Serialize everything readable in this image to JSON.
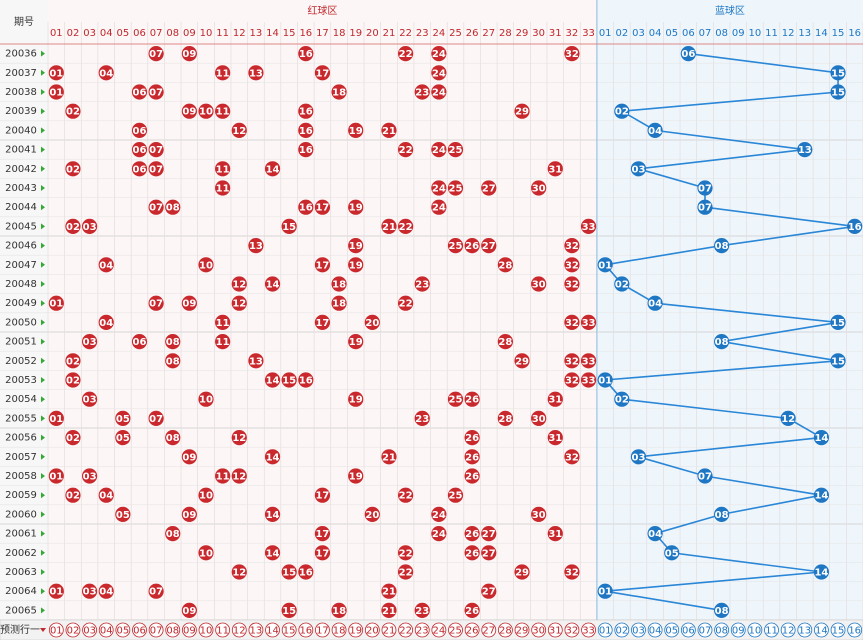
{
  "header": {
    "period": "期号",
    "red_zone": "红球区",
    "blue_zone": "蓝球区"
  },
  "red_columns": [
    "01",
    "02",
    "03",
    "04",
    "05",
    "06",
    "07",
    "08",
    "09",
    "10",
    "11",
    "12",
    "13",
    "14",
    "15",
    "16",
    "17",
    "18",
    "19",
    "20",
    "21",
    "22",
    "23",
    "24",
    "25",
    "26",
    "27",
    "28",
    "29",
    "30",
    "31",
    "32",
    "33"
  ],
  "blue_columns": [
    "01",
    "02",
    "03",
    "04",
    "05",
    "06",
    "07",
    "08",
    "09",
    "10",
    "11",
    "12",
    "13",
    "14",
    "15",
    "16"
  ],
  "rows": [
    {
      "period": "20036",
      "red": [
        "07",
        "09",
        "16",
        "22",
        "24",
        "32"
      ],
      "blue": "06"
    },
    {
      "period": "20037",
      "red": [
        "01",
        "04",
        "11",
        "13",
        "17",
        "24"
      ],
      "blue": "15"
    },
    {
      "period": "20038",
      "red": [
        "01",
        "06",
        "07",
        "18",
        "23",
        "24"
      ],
      "blue": "15"
    },
    {
      "period": "20039",
      "red": [
        "02",
        "09",
        "10",
        "11",
        "16",
        "29"
      ],
      "blue": "02"
    },
    {
      "period": "20040",
      "red": [
        "06",
        "12",
        "16",
        "19",
        "21"
      ],
      "blue": "04"
    },
    {
      "period": "20041",
      "red": [
        "06",
        "07",
        "16",
        "22",
        "24",
        "25"
      ],
      "blue": "13"
    },
    {
      "period": "20042",
      "red": [
        "02",
        "06",
        "07",
        "11",
        "14",
        "31"
      ],
      "blue": "03"
    },
    {
      "period": "20043",
      "red": [
        "11",
        "24",
        "25",
        "27",
        "30"
      ],
      "blue": "07"
    },
    {
      "period": "20044",
      "red": [
        "07",
        "08",
        "16",
        "17",
        "19",
        "24"
      ],
      "blue": "07"
    },
    {
      "period": "20045",
      "red": [
        "02",
        "03",
        "15",
        "21",
        "22",
        "33"
      ],
      "blue": "16"
    },
    {
      "period": "20046",
      "red": [
        "13",
        "19",
        "25",
        "26",
        "27",
        "32"
      ],
      "blue": "08"
    },
    {
      "period": "20047",
      "red": [
        "04",
        "10",
        "17",
        "19",
        "28",
        "32"
      ],
      "blue": "01"
    },
    {
      "period": "20048",
      "red": [
        "12",
        "14",
        "18",
        "23",
        "30",
        "32"
      ],
      "blue": "02"
    },
    {
      "period": "20049",
      "red": [
        "01",
        "07",
        "09",
        "12",
        "18",
        "22"
      ],
      "blue": "04"
    },
    {
      "period": "20050",
      "red": [
        "04",
        "11",
        "17",
        "20",
        "32",
        "33"
      ],
      "blue": "15"
    },
    {
      "period": "20051",
      "red": [
        "03",
        "06",
        "08",
        "11",
        "19",
        "28"
      ],
      "blue": "08"
    },
    {
      "period": "20052",
      "red": [
        "02",
        "08",
        "13",
        "29",
        "32",
        "33"
      ],
      "blue": "15"
    },
    {
      "period": "20053",
      "red": [
        "02",
        "14",
        "15",
        "16",
        "32",
        "33"
      ],
      "blue": "01"
    },
    {
      "period": "20054",
      "red": [
        "03",
        "10",
        "19",
        "25",
        "26",
        "31"
      ],
      "blue": "02"
    },
    {
      "period": "20055",
      "red": [
        "01",
        "05",
        "07",
        "23",
        "28",
        "30"
      ],
      "blue": "12"
    },
    {
      "period": "20056",
      "red": [
        "02",
        "05",
        "08",
        "12",
        "26",
        "31"
      ],
      "blue": "14"
    },
    {
      "period": "20057",
      "red": [
        "09",
        "14",
        "21",
        "26",
        "32"
      ],
      "blue": "03"
    },
    {
      "period": "20058",
      "red": [
        "01",
        "03",
        "11",
        "12",
        "19",
        "26"
      ],
      "blue": "07"
    },
    {
      "period": "20059",
      "red": [
        "02",
        "04",
        "10",
        "17",
        "22",
        "25"
      ],
      "blue": "14"
    },
    {
      "period": "20060",
      "red": [
        "05",
        "09",
        "14",
        "20",
        "24",
        "30"
      ],
      "blue": "08"
    },
    {
      "period": "20061",
      "red": [
        "08",
        "17",
        "24",
        "26",
        "27",
        "31"
      ],
      "blue": "04"
    },
    {
      "period": "20062",
      "red": [
        "10",
        "14",
        "17",
        "22",
        "26",
        "27"
      ],
      "blue": "05"
    },
    {
      "period": "20063",
      "red": [
        "12",
        "15",
        "16",
        "22",
        "29",
        "32"
      ],
      "blue": "14"
    },
    {
      "period": "20064",
      "red": [
        "01",
        "03",
        "04",
        "07",
        "21",
        "27"
      ],
      "blue": "01"
    },
    {
      "period": "20065",
      "red": [
        "09",
        "15",
        "18",
        "21",
        "23",
        "26"
      ],
      "blue": "08"
    }
  ],
  "footer": {
    "label": "预测行一"
  }
}
